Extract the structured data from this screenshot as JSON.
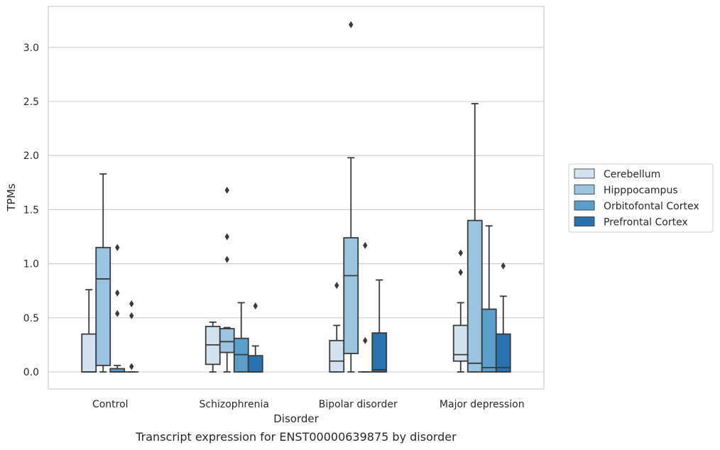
{
  "caption": "Transcript expression for ENST00000639875 by disorder",
  "chart_data": {
    "type": "boxplot",
    "xlabel": "Disorder",
    "ylabel": "TPMs",
    "ylim": [
      -0.15,
      3.38
    ],
    "yticks": [
      0.0,
      0.5,
      1.0,
      1.5,
      2.0,
      2.5,
      3.0
    ],
    "ytick_labels": [
      "0.0",
      "0.5",
      "1.0",
      "1.5",
      "2.0",
      "2.5",
      "3.0"
    ],
    "grid": "horizontal",
    "legend_position": "right",
    "categories": [
      "Control",
      "Schizophrenia",
      "Bipolar disorder",
      "Major depression"
    ],
    "series": [
      {
        "name": "Cerebellum",
        "color": "#d2e2f1",
        "boxes": [
          {
            "whislo": 0.0,
            "q1": 0.0,
            "med": 0.0,
            "q3": 0.35,
            "whishi": 0.76,
            "fliers": []
          },
          {
            "whislo": 0.0,
            "q1": 0.07,
            "med": 0.25,
            "q3": 0.42,
            "whishi": 0.46,
            "fliers": []
          },
          {
            "whislo": 0.0,
            "q1": 0.0,
            "med": 0.1,
            "q3": 0.29,
            "whishi": 0.43,
            "fliers": [
              0.8
            ]
          },
          {
            "whislo": 0.0,
            "q1": 0.1,
            "med": 0.16,
            "q3": 0.43,
            "whishi": 0.64,
            "fliers": [
              0.92,
              1.1
            ]
          }
        ]
      },
      {
        "name": "Hipppocampus",
        "color": "#9ac4e0",
        "boxes": [
          {
            "whislo": 0.0,
            "q1": 0.06,
            "med": 0.86,
            "q3": 1.15,
            "whishi": 1.83,
            "fliers": []
          },
          {
            "whislo": 0.0,
            "q1": 0.18,
            "med": 0.28,
            "q3": 0.4,
            "whishi": 0.41,
            "fliers": [
              1.04,
              1.25,
              1.68
            ]
          },
          {
            "whislo": 0.0,
            "q1": 0.17,
            "med": 0.89,
            "q3": 1.24,
            "whishi": 1.98,
            "fliers": [
              3.21
            ]
          },
          {
            "whislo": 0.0,
            "q1": 0.0,
            "med": 0.08,
            "q3": 1.4,
            "whishi": 2.48,
            "fliers": []
          }
        ]
      },
      {
        "name": "Orbitofontal Cortex",
        "color": "#5b9ec9",
        "boxes": [
          {
            "whislo": 0.0,
            "q1": 0.0,
            "med": 0.0,
            "q3": 0.03,
            "whishi": 0.06,
            "fliers": [
              0.54,
              0.73,
              1.15
            ]
          },
          {
            "whislo": 0.0,
            "q1": 0.0,
            "med": 0.16,
            "q3": 0.31,
            "whishi": 0.64,
            "fliers": []
          },
          {
            "whislo": 0.0,
            "q1": 0.0,
            "med": 0.0,
            "q3": 0.0,
            "whishi": 0.0,
            "fliers": [
              0.29,
              1.17
            ]
          },
          {
            "whislo": 0.0,
            "q1": 0.0,
            "med": 0.04,
            "q3": 0.58,
            "whishi": 1.35,
            "fliers": []
          }
        ]
      },
      {
        "name": "Prefrontal Cortex",
        "color": "#2a71b0",
        "boxes": [
          {
            "whislo": 0.0,
            "q1": 0.0,
            "med": 0.0,
            "q3": 0.0,
            "whishi": 0.0,
            "fliers": [
              0.05,
              0.52,
              0.63
            ]
          },
          {
            "whislo": 0.0,
            "q1": 0.0,
            "med": 0.0,
            "q3": 0.15,
            "whishi": 0.24,
            "fliers": [
              0.61
            ]
          },
          {
            "whislo": 0.0,
            "q1": 0.0,
            "med": 0.02,
            "q3": 0.36,
            "whishi": 0.85,
            "fliers": []
          },
          {
            "whislo": 0.0,
            "q1": 0.0,
            "med": 0.04,
            "q3": 0.35,
            "whishi": 0.7,
            "fliers": [
              0.98
            ]
          }
        ]
      }
    ]
  }
}
